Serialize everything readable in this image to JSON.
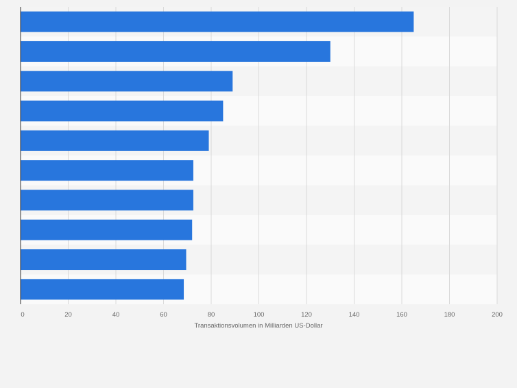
{
  "chart_data": {
    "type": "bar",
    "orientation": "horizontal",
    "categories": [
      "",
      "",
      "",
      "",
      "",
      "",
      "",
      "",
      "",
      ""
    ],
    "values": [
      165,
      130,
      89,
      85,
      79,
      72.5,
      72.5,
      72,
      69.5,
      68.5
    ],
    "xlabel": "Transaktionsvolumen in Milliarden US-Dollar",
    "ylabel": "",
    "xlim": [
      0,
      200
    ],
    "x_ticks": [
      "0",
      "20",
      "40",
      "60",
      "80",
      "100",
      "120",
      "140",
      "160",
      "180",
      "200"
    ],
    "grid": "vertical",
    "legend": "none"
  },
  "colors": {
    "bar": "#2876dd",
    "band_odd": "#f4f4f4",
    "band_even": "#fafafa",
    "grid": "#d9d9d9",
    "axis": "#333333",
    "tick_text": "#666666",
    "background": "#f3f3f3"
  }
}
